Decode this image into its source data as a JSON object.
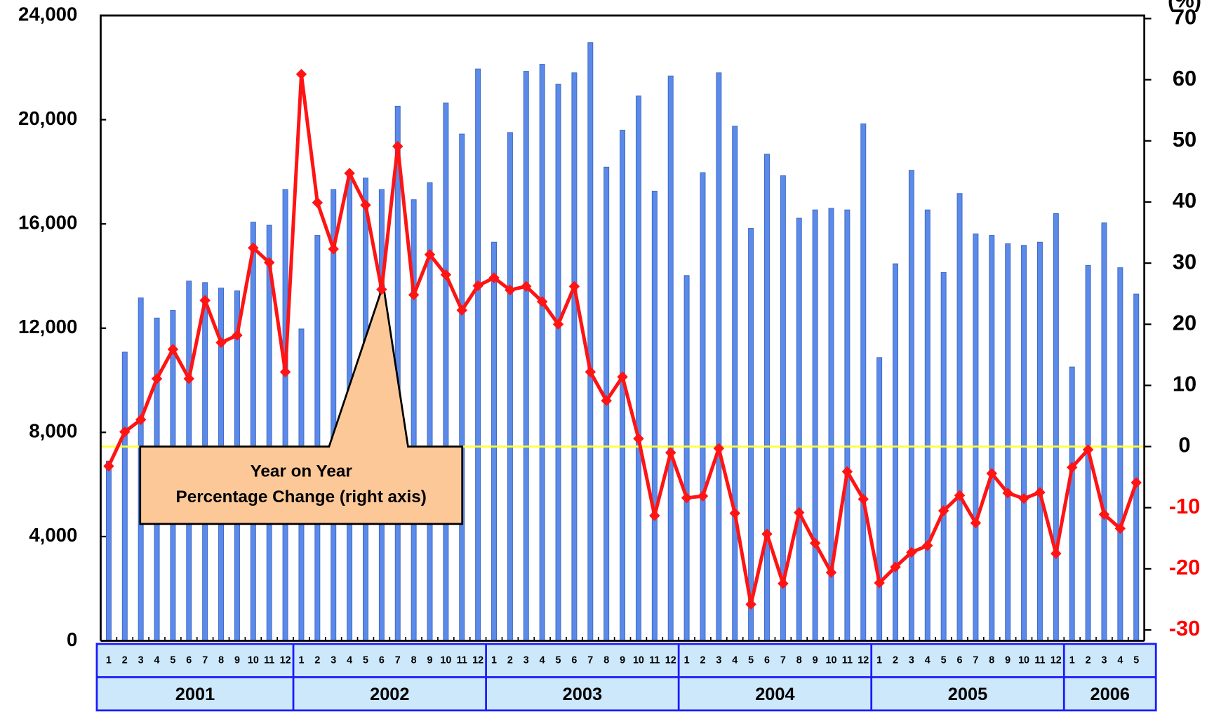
{
  "chart_data": {
    "type": "bar_line",
    "y2_label": "(%)",
    "annotation": [
      "Year on Year",
      "Percentage Change (right axis)"
    ],
    "groups": [
      {
        "label": "2001",
        "categories": [
          "1",
          "2",
          "3",
          "4",
          "5",
          "6",
          "7",
          "8",
          "9",
          "10",
          "11",
          "12"
        ]
      },
      {
        "label": "2002",
        "categories": [
          "1",
          "2",
          "3",
          "4",
          "5",
          "6",
          "7",
          "8",
          "9",
          "10",
          "11",
          "12"
        ]
      },
      {
        "label": "2003",
        "categories": [
          "1",
          "2",
          "3",
          "4",
          "5",
          "6",
          "7",
          "8",
          "9",
          "10",
          "11",
          "12"
        ]
      },
      {
        "label": "2004",
        "categories": [
          "1",
          "2",
          "3",
          "4",
          "5",
          "6",
          "7",
          "8",
          "9",
          "10",
          "11",
          "12"
        ]
      },
      {
        "label": "2005",
        "categories": [
          "1",
          "2",
          "3",
          "4",
          "5",
          "6",
          "7",
          "8",
          "9",
          "10",
          "11",
          "12"
        ]
      },
      {
        "label": "2006",
        "categories": [
          "1",
          "2",
          "3",
          "4",
          "5"
        ]
      }
    ],
    "series": [
      {
        "type": "bar",
        "color": "#5b8ae8",
        "values": [
          6900,
          11080,
          13160,
          12390,
          12680,
          13810,
          13750,
          13540,
          13430,
          16070,
          15950,
          17320,
          11970,
          15560,
          17320,
          18000,
          17760,
          17320,
          20520,
          16930,
          17580,
          20640,
          19450,
          21950,
          15300,
          19510,
          21860,
          22130,
          21360,
          21800,
          22960,
          18180,
          19600,
          20910,
          17260,
          21680,
          14020,
          17970,
          21800,
          19750,
          15830,
          18680,
          17850,
          16220,
          16540,
          16600,
          16540,
          19840,
          10870,
          14470,
          18060,
          16540,
          14140,
          17170,
          15620,
          15560,
          15240,
          15180,
          15300,
          16400,
          10510,
          14410,
          16040,
          14320,
          13310
        ]
      },
      {
        "type": "line",
        "axis": "y2",
        "color": "#ff1414",
        "values": [
          -3.2,
          2.4,
          4.4,
          11.1,
          15.9,
          11.1,
          23.9,
          17.0,
          18.2,
          32.5,
          30.1,
          12.2,
          60.9,
          39.9,
          32.3,
          44.7,
          39.5,
          25.7,
          49.1,
          24.8,
          31.4,
          28.1,
          22.3,
          26.3,
          27.6,
          25.6,
          26.2,
          23.7,
          20.0,
          26.2,
          12.2,
          7.5,
          11.4,
          1.3,
          -11.3,
          -1.0,
          -8.4,
          -8.1,
          -0.3,
          -10.9,
          -25.8,
          -14.3,
          -22.4,
          -10.8,
          -15.8,
          -20.6,
          -4.1,
          -8.6,
          -22.3,
          -19.7,
          -17.3,
          -16.2,
          -10.5,
          -8.0,
          -12.5,
          -4.4,
          -7.6,
          -8.5,
          -7.5,
          -17.5,
          -3.4,
          -0.5,
          -11.1,
          -13.4,
          -5.9
        ]
      }
    ],
    "ylim": [
      0,
      24000
    ],
    "yticks": [
      {
        "value": 0,
        "label": "0"
      },
      {
        "value": 4000,
        "label": "4,000"
      },
      {
        "value": 8000,
        "label": "8,000"
      },
      {
        "value": 12000,
        "label": "12,000"
      },
      {
        "value": 16000,
        "label": "16,000"
      },
      {
        "value": 20000,
        "label": "20,000"
      },
      {
        "value": 24000,
        "label": "24,000"
      }
    ],
    "y2lim": [
      -30,
      70
    ],
    "y2ticks": [
      -30,
      -20,
      -10,
      0,
      10,
      20,
      30,
      40,
      50,
      60,
      70
    ],
    "zero_line_color": "#ffff33",
    "negative_tick_color": "#ff0000",
    "annotation_color": "#fdc898",
    "table_color": "#cce8fa",
    "table_border_color": "#1a1aff"
  }
}
